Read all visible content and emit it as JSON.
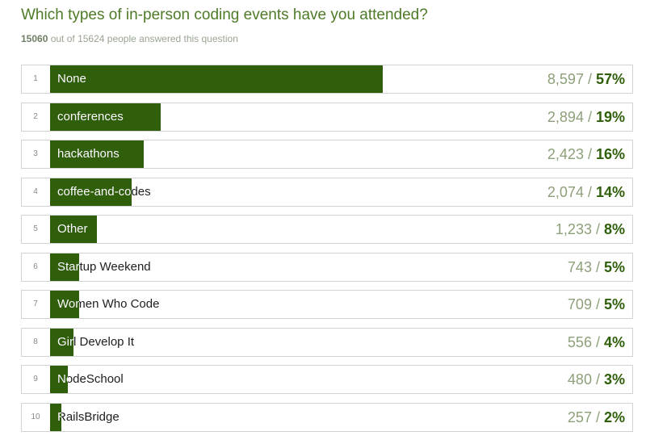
{
  "question": "Which types of in-person coding events have you attended?",
  "answered": {
    "count": "15060",
    "rest": " out of 15624 people answered this question"
  },
  "colors": {
    "bar": "#2f5f0a",
    "title": "#4f7a28",
    "count": "#8da07a"
  },
  "chart_data": {
    "type": "bar",
    "orientation": "horizontal",
    "xlim": [
      0,
      100
    ],
    "categories": [
      "None",
      "conferences",
      "hackathons",
      "coffee-and-codes",
      "Other",
      "Startup Weekend",
      "Women Who Code",
      "Girl Develop It",
      "NodeSchool",
      "RailsBridge"
    ],
    "ranks": [
      "1",
      "2",
      "3",
      "4",
      "5",
      "6",
      "7",
      "8",
      "9",
      "10"
    ],
    "counts": [
      "8,597",
      "2,894",
      "2,423",
      "2,074",
      "1,233",
      "743",
      "709",
      "556",
      "480",
      "257"
    ],
    "percent_labels": [
      "57%",
      "19%",
      "16%",
      "14%",
      "8%",
      "5%",
      "5%",
      "4%",
      "3%",
      "2%"
    ],
    "values": [
      57,
      19,
      16,
      14,
      8,
      5,
      5,
      4,
      3,
      2
    ]
  }
}
